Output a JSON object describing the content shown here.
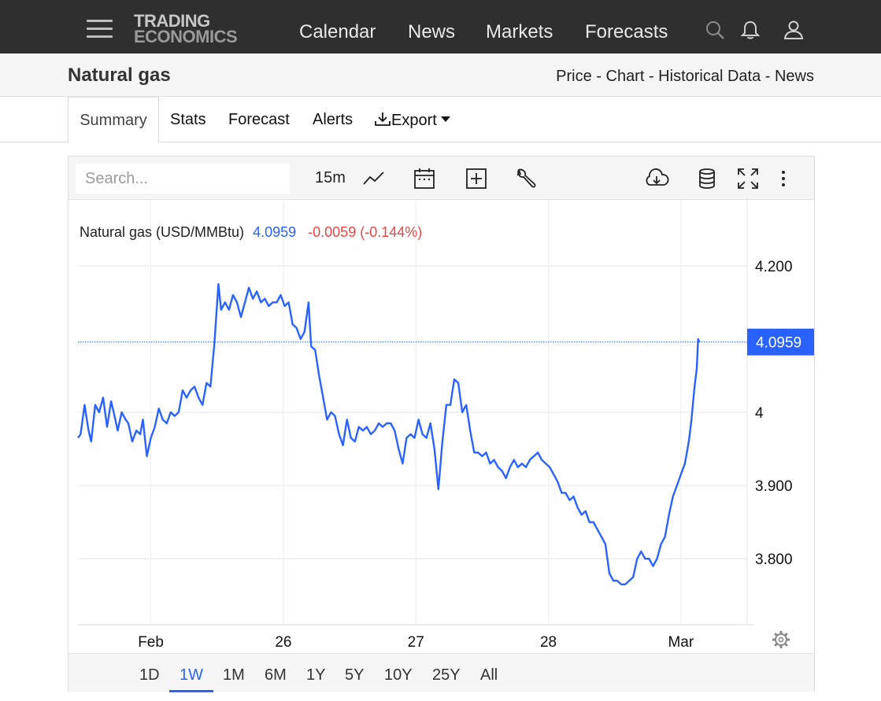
{
  "nav": {
    "logo_line1": "TRADING",
    "logo_line2": "ECONOMICS",
    "links": [
      "Calendar",
      "News",
      "Markets",
      "Forecasts"
    ],
    "icons": [
      "menu-icon",
      "search-icon",
      "bell-icon",
      "user-icon"
    ]
  },
  "page": {
    "title": "Natural gas",
    "breadcrumbs": "Price - Chart - Historical Data - News"
  },
  "tabs": {
    "summary": "Summary",
    "stats": "Stats",
    "forecast": "Forecast",
    "alerts": "Alerts",
    "export": "Export"
  },
  "toolbar": {
    "search_placeholder": "Search...",
    "interval": "15m",
    "icons": [
      "line-chart-icon",
      "calendar-icon",
      "plus-box-icon",
      "wrench-icon",
      "cloud-download-icon",
      "database-icon",
      "fullscreen-icon",
      "more-vertical-icon"
    ]
  },
  "ranges": {
    "items": [
      "1D",
      "1W",
      "1M",
      "6M",
      "1Y",
      "5Y",
      "10Y",
      "25Y",
      "All"
    ],
    "active": "1W"
  },
  "colors": {
    "line": "#2962ff",
    "change_negative": "#ef4444",
    "nav_bg": "#2f2f2f"
  },
  "chart_data": {
    "type": "line",
    "legend": {
      "name": "Natural gas (USD/MMBtu)",
      "last": "4.0959",
      "change": "-0.0059 (-0.144%)"
    },
    "last_value": 4.0959,
    "last_label": "4.0959",
    "y_ticks": [
      {
        "value": 4.2,
        "label": "4.200"
      },
      {
        "value": 4.0,
        "label": "4"
      },
      {
        "value": 3.9,
        "label": "3.900"
      },
      {
        "value": 3.8,
        "label": "3.800"
      }
    ],
    "x_ticks": [
      {
        "x": 1,
        "label": "Feb"
      },
      {
        "x": 2,
        "label": "26"
      },
      {
        "x": 3,
        "label": "27"
      },
      {
        "x": 4,
        "label": "28"
      },
      {
        "x": 5,
        "label": "Mar"
      }
    ],
    "xlim": [
      0.45,
      5.5
    ],
    "ylim": [
      3.71,
      4.29
    ],
    "grid": true,
    "points": [
      [
        0.45,
        3.965
      ],
      [
        0.47,
        3.97
      ],
      [
        0.5,
        4.01
      ],
      [
        0.53,
        3.975
      ],
      [
        0.55,
        3.96
      ],
      [
        0.58,
        4.01
      ],
      [
        0.61,
        4.0
      ],
      [
        0.64,
        4.02
      ],
      [
        0.67,
        3.98
      ],
      [
        0.7,
        4.015
      ],
      [
        0.72,
        4.0
      ],
      [
        0.75,
        3.975
      ],
      [
        0.78,
        4.0
      ],
      [
        0.81,
        3.99
      ],
      [
        0.83,
        3.985
      ],
      [
        0.86,
        3.96
      ],
      [
        0.89,
        3.975
      ],
      [
        0.92,
        3.97
      ],
      [
        0.94,
        3.99
      ],
      [
        0.97,
        3.94
      ],
      [
        1.0,
        3.965
      ],
      [
        1.03,
        3.98
      ],
      [
        1.06,
        4.005
      ],
      [
        1.09,
        3.99
      ],
      [
        1.12,
        3.985
      ],
      [
        1.15,
        4.0
      ],
      [
        1.18,
        3.995
      ],
      [
        1.21,
        4.0
      ],
      [
        1.24,
        4.03
      ],
      [
        1.27,
        4.02
      ],
      [
        1.3,
        4.03
      ],
      [
        1.33,
        4.035
      ],
      [
        1.36,
        4.02
      ],
      [
        1.39,
        4.01
      ],
      [
        1.42,
        4.04
      ],
      [
        1.45,
        4.035
      ],
      [
        1.48,
        4.095
      ],
      [
        1.51,
        4.175
      ],
      [
        1.53,
        4.14
      ],
      [
        1.56,
        4.15
      ],
      [
        1.59,
        4.14
      ],
      [
        1.62,
        4.16
      ],
      [
        1.65,
        4.15
      ],
      [
        1.68,
        4.13
      ],
      [
        1.71,
        4.15
      ],
      [
        1.74,
        4.17
      ],
      [
        1.77,
        4.155
      ],
      [
        1.8,
        4.165
      ],
      [
        1.83,
        4.15
      ],
      [
        1.86,
        4.155
      ],
      [
        1.89,
        4.145
      ],
      [
        1.92,
        4.15
      ],
      [
        1.95,
        4.15
      ],
      [
        1.98,
        4.16
      ],
      [
        2.01,
        4.145
      ],
      [
        2.04,
        4.15
      ],
      [
        2.07,
        4.12
      ],
      [
        2.1,
        4.115
      ],
      [
        2.13,
        4.1
      ],
      [
        2.16,
        4.11
      ],
      [
        2.19,
        4.15
      ],
      [
        2.21,
        4.09
      ],
      [
        2.24,
        4.085
      ],
      [
        2.27,
        4.05
      ],
      [
        2.3,
        4.02
      ],
      [
        2.33,
        3.99
      ],
      [
        2.36,
        4.0
      ],
      [
        2.39,
        3.995
      ],
      [
        2.42,
        3.97
      ],
      [
        2.45,
        3.955
      ],
      [
        2.48,
        3.99
      ],
      [
        2.51,
        3.965
      ],
      [
        2.54,
        3.96
      ],
      [
        2.57,
        3.98
      ],
      [
        2.6,
        3.975
      ],
      [
        2.63,
        3.98
      ],
      [
        2.66,
        3.97
      ],
      [
        2.69,
        3.975
      ],
      [
        2.72,
        3.985
      ],
      [
        2.75,
        3.98
      ],
      [
        2.78,
        3.985
      ],
      [
        2.81,
        3.985
      ],
      [
        2.84,
        3.975
      ],
      [
        2.87,
        3.95
      ],
      [
        2.9,
        3.93
      ],
      [
        2.93,
        3.965
      ],
      [
        2.96,
        3.97
      ],
      [
        2.99,
        3.965
      ],
      [
        3.02,
        3.99
      ],
      [
        3.05,
        3.97
      ],
      [
        3.08,
        3.965
      ],
      [
        3.11,
        3.985
      ],
      [
        3.14,
        3.95
      ],
      [
        3.17,
        3.895
      ],
      [
        3.2,
        3.96
      ],
      [
        3.23,
        4.01
      ],
      [
        3.26,
        4.01
      ],
      [
        3.29,
        4.045
      ],
      [
        3.32,
        4.04
      ],
      [
        3.35,
        4.0
      ],
      [
        3.38,
        4.01
      ],
      [
        3.41,
        3.975
      ],
      [
        3.44,
        3.945
      ],
      [
        3.47,
        3.945
      ],
      [
        3.5,
        3.94
      ],
      [
        3.53,
        3.945
      ],
      [
        3.56,
        3.93
      ],
      [
        3.59,
        3.935
      ],
      [
        3.62,
        3.925
      ],
      [
        3.65,
        3.92
      ],
      [
        3.68,
        3.91
      ],
      [
        3.71,
        3.925
      ],
      [
        3.74,
        3.935
      ],
      [
        3.77,
        3.925
      ],
      [
        3.8,
        3.93
      ],
      [
        3.83,
        3.925
      ],
      [
        3.86,
        3.935
      ],
      [
        3.89,
        3.94
      ],
      [
        3.92,
        3.945
      ],
      [
        3.95,
        3.935
      ],
      [
        3.98,
        3.93
      ],
      [
        4.01,
        3.925
      ],
      [
        4.04,
        3.915
      ],
      [
        4.07,
        3.905
      ],
      [
        4.1,
        3.89
      ],
      [
        4.13,
        3.89
      ],
      [
        4.16,
        3.88
      ],
      [
        4.19,
        3.885
      ],
      [
        4.22,
        3.87
      ],
      [
        4.25,
        3.86
      ],
      [
        4.28,
        3.865
      ],
      [
        4.31,
        3.85
      ],
      [
        4.34,
        3.85
      ],
      [
        4.37,
        3.84
      ],
      [
        4.4,
        3.83
      ],
      [
        4.43,
        3.82
      ],
      [
        4.46,
        3.78
      ],
      [
        4.49,
        3.77
      ],
      [
        4.52,
        3.77
      ],
      [
        4.55,
        3.765
      ],
      [
        4.58,
        3.765
      ],
      [
        4.61,
        3.77
      ],
      [
        4.64,
        3.775
      ],
      [
        4.67,
        3.8
      ],
      [
        4.7,
        3.81
      ],
      [
        4.73,
        3.8
      ],
      [
        4.76,
        3.8
      ],
      [
        4.79,
        3.79
      ],
      [
        4.82,
        3.8
      ],
      [
        4.85,
        3.82
      ],
      [
        4.88,
        3.83
      ],
      [
        4.91,
        3.86
      ],
      [
        4.94,
        3.885
      ],
      [
        4.97,
        3.9
      ],
      [
        5.0,
        3.915
      ],
      [
        5.03,
        3.93
      ],
      [
        5.06,
        3.96
      ],
      [
        5.08,
        3.99
      ],
      [
        5.1,
        4.03
      ],
      [
        5.12,
        4.06
      ],
      [
        5.13,
        4.1
      ],
      [
        5.14,
        4.0959
      ]
    ]
  }
}
